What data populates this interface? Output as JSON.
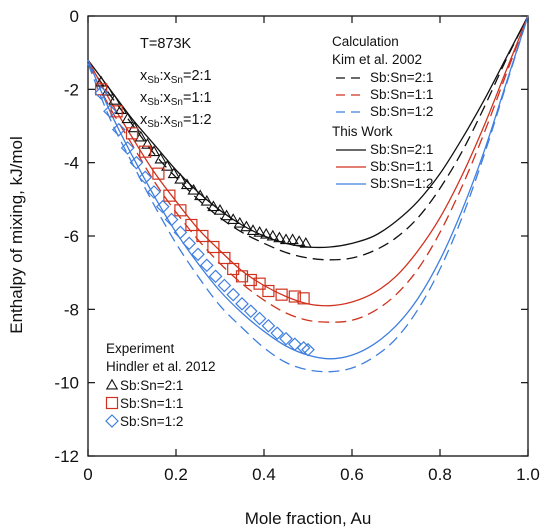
{
  "chart_data": {
    "type": "line",
    "xlabel": "Mole fraction, Au",
    "ylabel": "Enthalpy of mixing, kJ/mol",
    "xlim": [
      0,
      1.0
    ],
    "ylim": [
      -12,
      0
    ],
    "x_ticks": [
      0,
      0.2,
      0.4,
      0.6,
      0.8,
      1.0
    ],
    "x_tick_labels": [
      "0",
      "0.2",
      "0.4",
      "0.6",
      "0.8",
      "1.0"
    ],
    "y_ticks": [
      0,
      -2,
      -4,
      -6,
      -8,
      -10,
      -12
    ],
    "y_tick_labels": [
      "0",
      "-2",
      "-4",
      "-6",
      "-8",
      "-10",
      "-12"
    ],
    "grid": false,
    "annotations": {
      "temperature": "T=873K",
      "ratio_lines": [
        {
          "prefix": "x",
          "sub1": "Sb",
          "mid": ":x",
          "sub2": "Sn",
          "suffix": "=2:1"
        },
        {
          "prefix": "x",
          "sub1": "Sb",
          "mid": ":x",
          "sub2": "Sn",
          "suffix": "=1:1"
        },
        {
          "prefix": "x",
          "sub1": "Sb",
          "mid": ":x",
          "sub2": "Sn",
          "suffix": "=1:2"
        }
      ]
    },
    "legend_calc": {
      "heading": "Calculation",
      "kim_label": "Kim et al. 2002",
      "this_work_label": "This Work",
      "kim_entries": [
        "Sb:Sn=2:1",
        "Sb:Sn=1:1",
        "Sb:Sn=1:2"
      ],
      "this_work_entries": [
        "Sb:Sn=2:1",
        "Sb:Sn=1:1",
        "Sb:Sn=1:2"
      ],
      "placement": "top-right"
    },
    "legend_exp": {
      "heading": "Experiment",
      "source_label": "Hindler et al. 2012",
      "entries": [
        "Sb:Sn=2:1",
        "Sb:Sn=1:1",
        "Sb:Sn=1:2"
      ],
      "placement": "bottom-left"
    },
    "colors": {
      "ratio_2_1": "#111111",
      "ratio_1_1": "#d0321e",
      "ratio_1_2": "#3f7fe0"
    },
    "series": [
      {
        "name": "Sb:Sn=2:1",
        "group": "Kim et al. 2002",
        "style": "dashed",
        "color_key": "ratio_2_1",
        "x": [
          0,
          0.05,
          0.1,
          0.15,
          0.2,
          0.25,
          0.3,
          0.35,
          0.4,
          0.45,
          0.5,
          0.55,
          0.6,
          0.65,
          0.7,
          0.75,
          0.8,
          0.85,
          0.9,
          0.95,
          1.0
        ],
        "y": [
          -1.3,
          -2.15,
          -2.95,
          -3.75,
          -4.4,
          -5.0,
          -5.5,
          -5.9,
          -6.2,
          -6.45,
          -6.6,
          -6.65,
          -6.6,
          -6.4,
          -6.05,
          -5.5,
          -4.7,
          -3.7,
          -2.5,
          -1.2,
          0
        ]
      },
      {
        "name": "Sb:Sn=1:1",
        "group": "Kim et al. 2002",
        "style": "dashed",
        "color_key": "ratio_1_1",
        "x": [
          0,
          0.05,
          0.1,
          0.15,
          0.2,
          0.25,
          0.3,
          0.35,
          0.4,
          0.45,
          0.5,
          0.55,
          0.6,
          0.65,
          0.7,
          0.75,
          0.8,
          0.85,
          0.9,
          0.95,
          1.0
        ],
        "y": [
          -1.3,
          -2.5,
          -3.5,
          -4.5,
          -5.35,
          -6.1,
          -6.75,
          -7.3,
          -7.75,
          -8.1,
          -8.3,
          -8.35,
          -8.3,
          -8.05,
          -7.6,
          -6.9,
          -5.9,
          -4.65,
          -3.2,
          -1.6,
          0
        ]
      },
      {
        "name": "Sb:Sn=1:2",
        "group": "Kim et al. 2002",
        "style": "dashed",
        "color_key": "ratio_1_2",
        "x": [
          0,
          0.05,
          0.1,
          0.15,
          0.2,
          0.25,
          0.3,
          0.35,
          0.4,
          0.45,
          0.5,
          0.55,
          0.6,
          0.65,
          0.7,
          0.75,
          0.8,
          0.85,
          0.9,
          0.95,
          1.0
        ],
        "y": [
          -1.3,
          -2.8,
          -4.0,
          -5.15,
          -6.2,
          -7.1,
          -7.9,
          -8.5,
          -9.05,
          -9.45,
          -9.65,
          -9.7,
          -9.6,
          -9.3,
          -8.8,
          -8.0,
          -6.9,
          -5.5,
          -3.8,
          -1.9,
          0
        ]
      },
      {
        "name": "Sb:Sn=2:1",
        "group": "This Work",
        "style": "solid",
        "color_key": "ratio_2_1",
        "x": [
          0,
          0.05,
          0.1,
          0.15,
          0.2,
          0.25,
          0.3,
          0.35,
          0.4,
          0.45,
          0.5,
          0.55,
          0.6,
          0.65,
          0.7,
          0.75,
          0.8,
          0.85,
          0.9,
          0.95,
          1.0
        ],
        "y": [
          -1.2,
          -2.0,
          -2.8,
          -3.5,
          -4.2,
          -4.8,
          -5.3,
          -5.7,
          -6.0,
          -6.2,
          -6.3,
          -6.3,
          -6.2,
          -6.0,
          -5.6,
          -5.05,
          -4.3,
          -3.35,
          -2.3,
          -1.15,
          0
        ]
      },
      {
        "name": "Sb:Sn=1:1",
        "group": "This Work",
        "style": "solid",
        "color_key": "ratio_1_1",
        "x": [
          0,
          0.05,
          0.1,
          0.15,
          0.2,
          0.25,
          0.3,
          0.35,
          0.4,
          0.45,
          0.5,
          0.55,
          0.6,
          0.65,
          0.7,
          0.75,
          0.8,
          0.85,
          0.9,
          0.95,
          1.0
        ],
        "y": [
          -1.2,
          -2.3,
          -3.3,
          -4.25,
          -5.05,
          -5.8,
          -6.4,
          -6.95,
          -7.35,
          -7.65,
          -7.85,
          -7.9,
          -7.8,
          -7.55,
          -7.1,
          -6.4,
          -5.5,
          -4.35,
          -3.0,
          -1.5,
          0
        ]
      },
      {
        "name": "Sb:Sn=1:2",
        "group": "This Work",
        "style": "solid",
        "color_key": "ratio_1_2",
        "x": [
          0,
          0.05,
          0.1,
          0.15,
          0.2,
          0.25,
          0.3,
          0.35,
          0.4,
          0.45,
          0.5,
          0.55,
          0.6,
          0.65,
          0.7,
          0.75,
          0.8,
          0.85,
          0.9,
          0.95,
          1.0
        ],
        "y": [
          -1.2,
          -2.6,
          -3.8,
          -4.9,
          -5.9,
          -6.75,
          -7.5,
          -8.1,
          -8.6,
          -9.0,
          -9.25,
          -9.35,
          -9.25,
          -8.95,
          -8.45,
          -7.7,
          -6.65,
          -5.3,
          -3.7,
          -1.85,
          0
        ]
      },
      {
        "name": "Sb:Sn=2:1",
        "group": "Hindler et al. 2012",
        "style": "marker",
        "marker": "triangle",
        "color_key": "ratio_2_1",
        "x": [
          0.03,
          0.045,
          0.06,
          0.075,
          0.09,
          0.105,
          0.12,
          0.135,
          0.15,
          0.165,
          0.18,
          0.195,
          0.21,
          0.225,
          0.24,
          0.255,
          0.27,
          0.285,
          0.3,
          0.315,
          0.33,
          0.345,
          0.36,
          0.375,
          0.39,
          0.405,
          0.42,
          0.435,
          0.45,
          0.465,
          0.48,
          0.495
        ],
        "y": [
          -1.8,
          -2.05,
          -2.3,
          -2.55,
          -2.8,
          -3.05,
          -3.3,
          -3.5,
          -3.7,
          -3.9,
          -4.1,
          -4.3,
          -4.45,
          -4.6,
          -4.75,
          -4.9,
          -5.05,
          -5.2,
          -5.3,
          -5.45,
          -5.55,
          -5.65,
          -5.75,
          -5.85,
          -5.9,
          -5.95,
          -6.0,
          -6.05,
          -6.1,
          -6.1,
          -6.15,
          -6.2
        ]
      },
      {
        "name": "Sb:Sn=1:1",
        "group": "Hindler et al. 2012",
        "style": "marker",
        "marker": "square",
        "color_key": "ratio_1_1",
        "x": [
          0.03,
          0.065,
          0.1,
          0.13,
          0.16,
          0.185,
          0.21,
          0.235,
          0.26,
          0.285,
          0.31,
          0.33,
          0.35,
          0.37,
          0.39,
          0.41,
          0.44,
          0.47,
          0.49
        ],
        "y": [
          -2.0,
          -2.6,
          -3.2,
          -3.7,
          -4.3,
          -4.9,
          -5.3,
          -5.7,
          -6.0,
          -6.3,
          -6.6,
          -6.9,
          -7.1,
          -7.2,
          -7.3,
          -7.5,
          -7.6,
          -7.65,
          -7.7
        ]
      },
      {
        "name": "Sb:Sn=1:2",
        "group": "Hindler et al. 2012",
        "style": "marker",
        "marker": "diamond",
        "color_key": "ratio_1_2",
        "x": [
          0.03,
          0.05,
          0.07,
          0.09,
          0.11,
          0.13,
          0.15,
          0.17,
          0.19,
          0.21,
          0.23,
          0.25,
          0.27,
          0.29,
          0.31,
          0.33,
          0.35,
          0.37,
          0.39,
          0.41,
          0.43,
          0.45,
          0.47,
          0.49,
          0.5
        ],
        "y": [
          -2.1,
          -2.6,
          -3.1,
          -3.6,
          -4.0,
          -4.4,
          -4.8,
          -5.2,
          -5.55,
          -5.9,
          -6.2,
          -6.5,
          -6.8,
          -7.1,
          -7.35,
          -7.6,
          -7.85,
          -8.05,
          -8.25,
          -8.45,
          -8.65,
          -8.8,
          -8.95,
          -9.05,
          -9.1
        ]
      }
    ]
  }
}
